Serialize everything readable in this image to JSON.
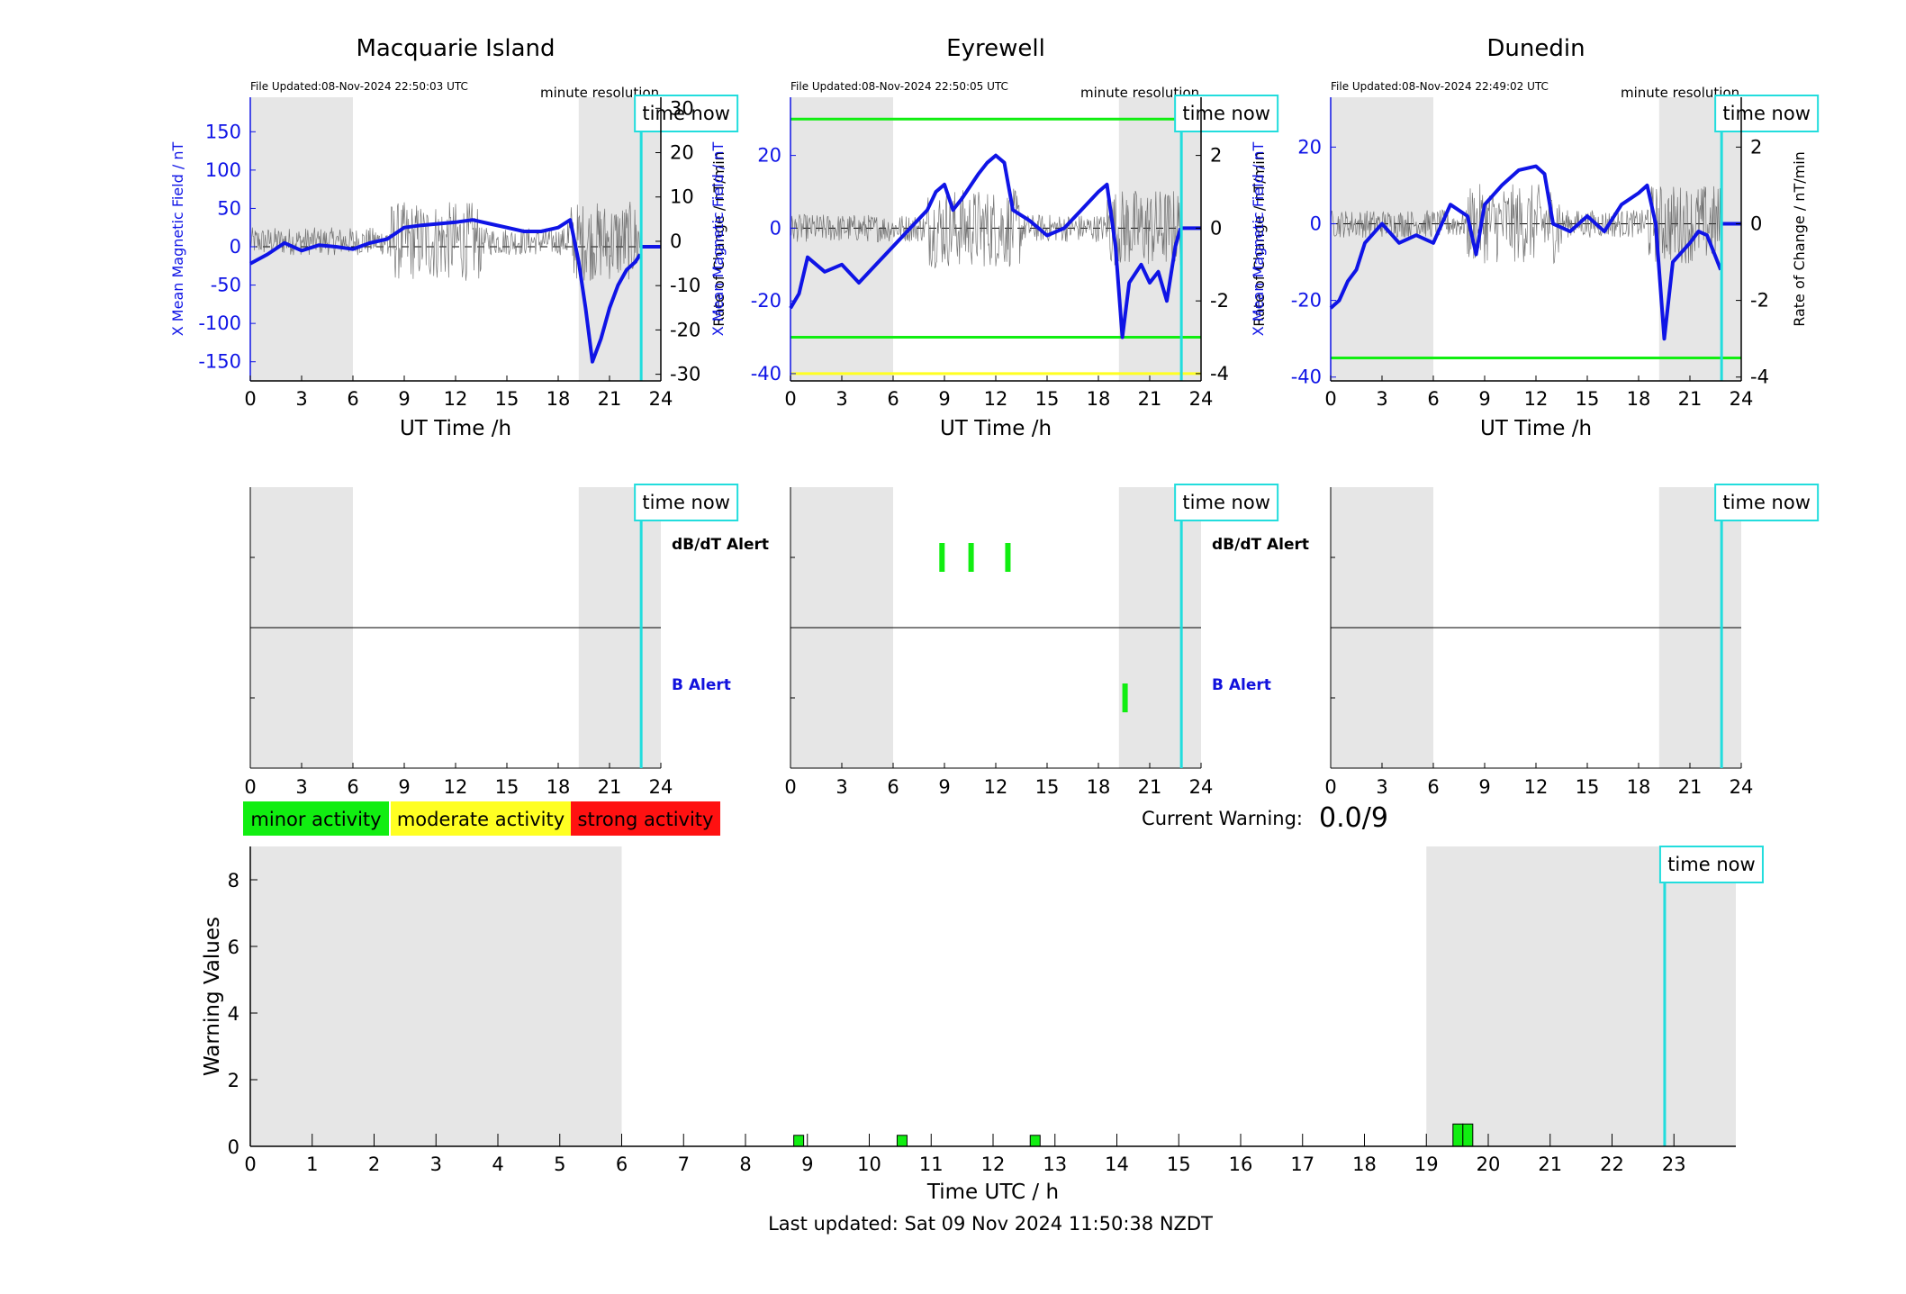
{
  "colors": {
    "shade": "#e6e6e6",
    "field_line": "#0f14e6",
    "rate_trace": "#555555",
    "time_now": "#22dddd",
    "minor": "#11ee11",
    "moderate": "#ffff22",
    "strong": "#ff1111",
    "b_alert_label": "#1111dd"
  },
  "time_now_label": "time now",
  "minute_resolution_label": "minute resolution",
  "time_now_hour": 22.85,
  "night_shading_hours": [
    [
      0,
      6
    ],
    [
      19.2,
      24
    ]
  ],
  "stations": [
    {
      "name": "Macquarie Island",
      "file_updated": "File Updated:08-Nov-2024 22:50:03 UTC",
      "xlabel": "UT Time /h",
      "ylabel_left": "X Mean Magnetic Field / nT",
      "ylabel_right": "Rate of Change / nT/min",
      "x_ticks": [
        "0",
        "3",
        "6",
        "9",
        "12",
        "15",
        "18",
        "21",
        "24"
      ],
      "left_ylim": [
        -175,
        195
      ],
      "left_ticks": [
        "-150",
        "-100",
        "-50",
        "0",
        "50",
        "100",
        "150"
      ],
      "right_ylim": [
        -31.5,
        32.5
      ],
      "right_ticks": [
        "-30",
        "-20",
        "-10",
        "0",
        "10",
        "20",
        "30"
      ],
      "threshold_lines": [],
      "field_series": [
        [
          0,
          -22
        ],
        [
          1,
          -10
        ],
        [
          2,
          5
        ],
        [
          3,
          -5
        ],
        [
          4,
          2
        ],
        [
          5,
          0
        ],
        [
          6,
          -3
        ],
        [
          7,
          5
        ],
        [
          8,
          10
        ],
        [
          9,
          25
        ],
        [
          10,
          28
        ],
        [
          11,
          30
        ],
        [
          12,
          32
        ],
        [
          13,
          35
        ],
        [
          14,
          30
        ],
        [
          15,
          25
        ],
        [
          16,
          20
        ],
        [
          17,
          20
        ],
        [
          18,
          25
        ],
        [
          18.7,
          35
        ],
        [
          19.2,
          -20
        ],
        [
          19.6,
          -80
        ],
        [
          20,
          -150
        ],
        [
          20.5,
          -120
        ],
        [
          21,
          -80
        ],
        [
          21.5,
          -50
        ],
        [
          22,
          -30
        ],
        [
          22.5,
          -20
        ],
        [
          22.8,
          -10
        ]
      ],
      "dbdt_alerts": [],
      "b_alerts": []
    },
    {
      "name": "Eyrewell",
      "file_updated": "File Updated:08-Nov-2024 22:50:05 UTC",
      "xlabel": "UT Time /h",
      "ylabel_left": "X Mean Magnetic Field / nT",
      "ylabel_right": "Rate of Change / nT/min",
      "x_ticks": [
        "0",
        "3",
        "6",
        "9",
        "12",
        "15",
        "18",
        "21",
        "24"
      ],
      "left_ylim": [
        -42,
        36
      ],
      "left_ticks": [
        "-40",
        "-20",
        "0",
        "20"
      ],
      "right_ylim": [
        -4.2,
        3.6
      ],
      "right_ticks": [
        "-4",
        "-2",
        "0",
        "2"
      ],
      "threshold_lines": [
        {
          "value": 30,
          "color": "#11ee11"
        },
        {
          "value": -30,
          "color": "#11ee11"
        },
        {
          "value": -40,
          "color": "#ffff22"
        }
      ],
      "field_series": [
        [
          0,
          -22
        ],
        [
          0.5,
          -18
        ],
        [
          1,
          -8
        ],
        [
          2,
          -12
        ],
        [
          3,
          -10
        ],
        [
          4,
          -15
        ],
        [
          5,
          -10
        ],
        [
          6,
          -5
        ],
        [
          7,
          0
        ],
        [
          8,
          5
        ],
        [
          8.5,
          10
        ],
        [
          9,
          12
        ],
        [
          9.5,
          5
        ],
        [
          10,
          8
        ],
        [
          11,
          15
        ],
        [
          11.5,
          18
        ],
        [
          12,
          20
        ],
        [
          12.5,
          18
        ],
        [
          13,
          5
        ],
        [
          14,
          2
        ],
        [
          15,
          -2
        ],
        [
          16,
          0
        ],
        [
          17,
          5
        ],
        [
          18,
          10
        ],
        [
          18.5,
          12
        ],
        [
          19,
          -5
        ],
        [
          19.4,
          -30
        ],
        [
          19.8,
          -15
        ],
        [
          20.5,
          -10
        ],
        [
          21,
          -15
        ],
        [
          21.5,
          -12
        ],
        [
          22,
          -20
        ],
        [
          22.5,
          -5
        ],
        [
          22.8,
          0
        ]
      ],
      "dbdt_alerts": [
        {
          "start": 8.7,
          "end": 8.85
        },
        {
          "start": 10.4,
          "end": 10.55
        },
        {
          "start": 12.55,
          "end": 12.7
        }
      ],
      "b_alerts": [
        {
          "start": 19.4,
          "end": 19.55
        }
      ]
    },
    {
      "name": "Dunedin",
      "file_updated": "File Updated:08-Nov-2024 22:49:02 UTC",
      "xlabel": "UT Time /h",
      "ylabel_left": "X Mean Magnetic Field / nT",
      "ylabel_right": "Rate of Change / nT/min",
      "x_ticks": [
        "0",
        "3",
        "6",
        "9",
        "12",
        "15",
        "18",
        "21",
        "24"
      ],
      "left_ylim": [
        -41,
        33
      ],
      "left_ticks": [
        "-40",
        "-20",
        "0",
        "20"
      ],
      "right_ylim": [
        -4.1,
        3.3
      ],
      "right_ticks": [
        "-4",
        "-2",
        "0",
        "2"
      ],
      "threshold_lines": [
        {
          "value": -35,
          "color": "#11ee11"
        }
      ],
      "field_series": [
        [
          0,
          -22
        ],
        [
          0.5,
          -20
        ],
        [
          1,
          -15
        ],
        [
          1.5,
          -12
        ],
        [
          2,
          -5
        ],
        [
          3,
          0
        ],
        [
          4,
          -5
        ],
        [
          5,
          -3
        ],
        [
          6,
          -5
        ],
        [
          7,
          5
        ],
        [
          8,
          2
        ],
        [
          8.5,
          -8
        ],
        [
          9,
          5
        ],
        [
          10,
          10
        ],
        [
          11,
          14
        ],
        [
          12,
          15
        ],
        [
          12.5,
          13
        ],
        [
          13,
          0
        ],
        [
          14,
          -2
        ],
        [
          15,
          2
        ],
        [
          16,
          -2
        ],
        [
          17,
          5
        ],
        [
          18,
          8
        ],
        [
          18.5,
          10
        ],
        [
          19,
          0
        ],
        [
          19.5,
          -30
        ],
        [
          20,
          -10
        ],
        [
          21,
          -5
        ],
        [
          21.5,
          -2
        ],
        [
          22,
          -3
        ],
        [
          22.8,
          -12
        ]
      ],
      "dbdt_alerts": [],
      "b_alerts": []
    }
  ],
  "alert_labels": {
    "dbdt": "dB/dT Alert",
    "b": "B Alert"
  },
  "legend": {
    "minor": "minor activity",
    "moderate": "moderate activity",
    "strong": "strong activity"
  },
  "current_warning_label": "Current Warning:",
  "current_warning_value": "0.0/9",
  "chart_data": {
    "type": "bar",
    "xlabel": "Time UTC / h",
    "ylabel": "Warning Values",
    "xlim": [
      0,
      24
    ],
    "ylim": [
      0,
      9
    ],
    "x_ticks": [
      "0",
      "1",
      "2",
      "3",
      "4",
      "5",
      "6",
      "7",
      "8",
      "9",
      "10",
      "11",
      "12",
      "13",
      "14",
      "15",
      "16",
      "17",
      "18",
      "19",
      "20",
      "21",
      "22",
      "23"
    ],
    "y_ticks": [
      "0",
      "2",
      "4",
      "6",
      "8"
    ],
    "shaded_hours": [
      [
        0,
        6
      ],
      [
        19,
        24
      ]
    ],
    "bars": [
      {
        "x": 8.78,
        "width": 0.16,
        "value": 0.33,
        "level": "minor"
      },
      {
        "x": 10.45,
        "width": 0.16,
        "value": 0.33,
        "level": "minor"
      },
      {
        "x": 12.6,
        "width": 0.16,
        "value": 0.33,
        "level": "minor"
      },
      {
        "x": 19.43,
        "width": 0.16,
        "value": 0.67,
        "level": "minor"
      },
      {
        "x": 19.59,
        "width": 0.16,
        "value": 0.67,
        "level": "minor"
      }
    ]
  },
  "last_updated": "Last updated: Sat 09 Nov 2024 11:50:38 NZDT"
}
